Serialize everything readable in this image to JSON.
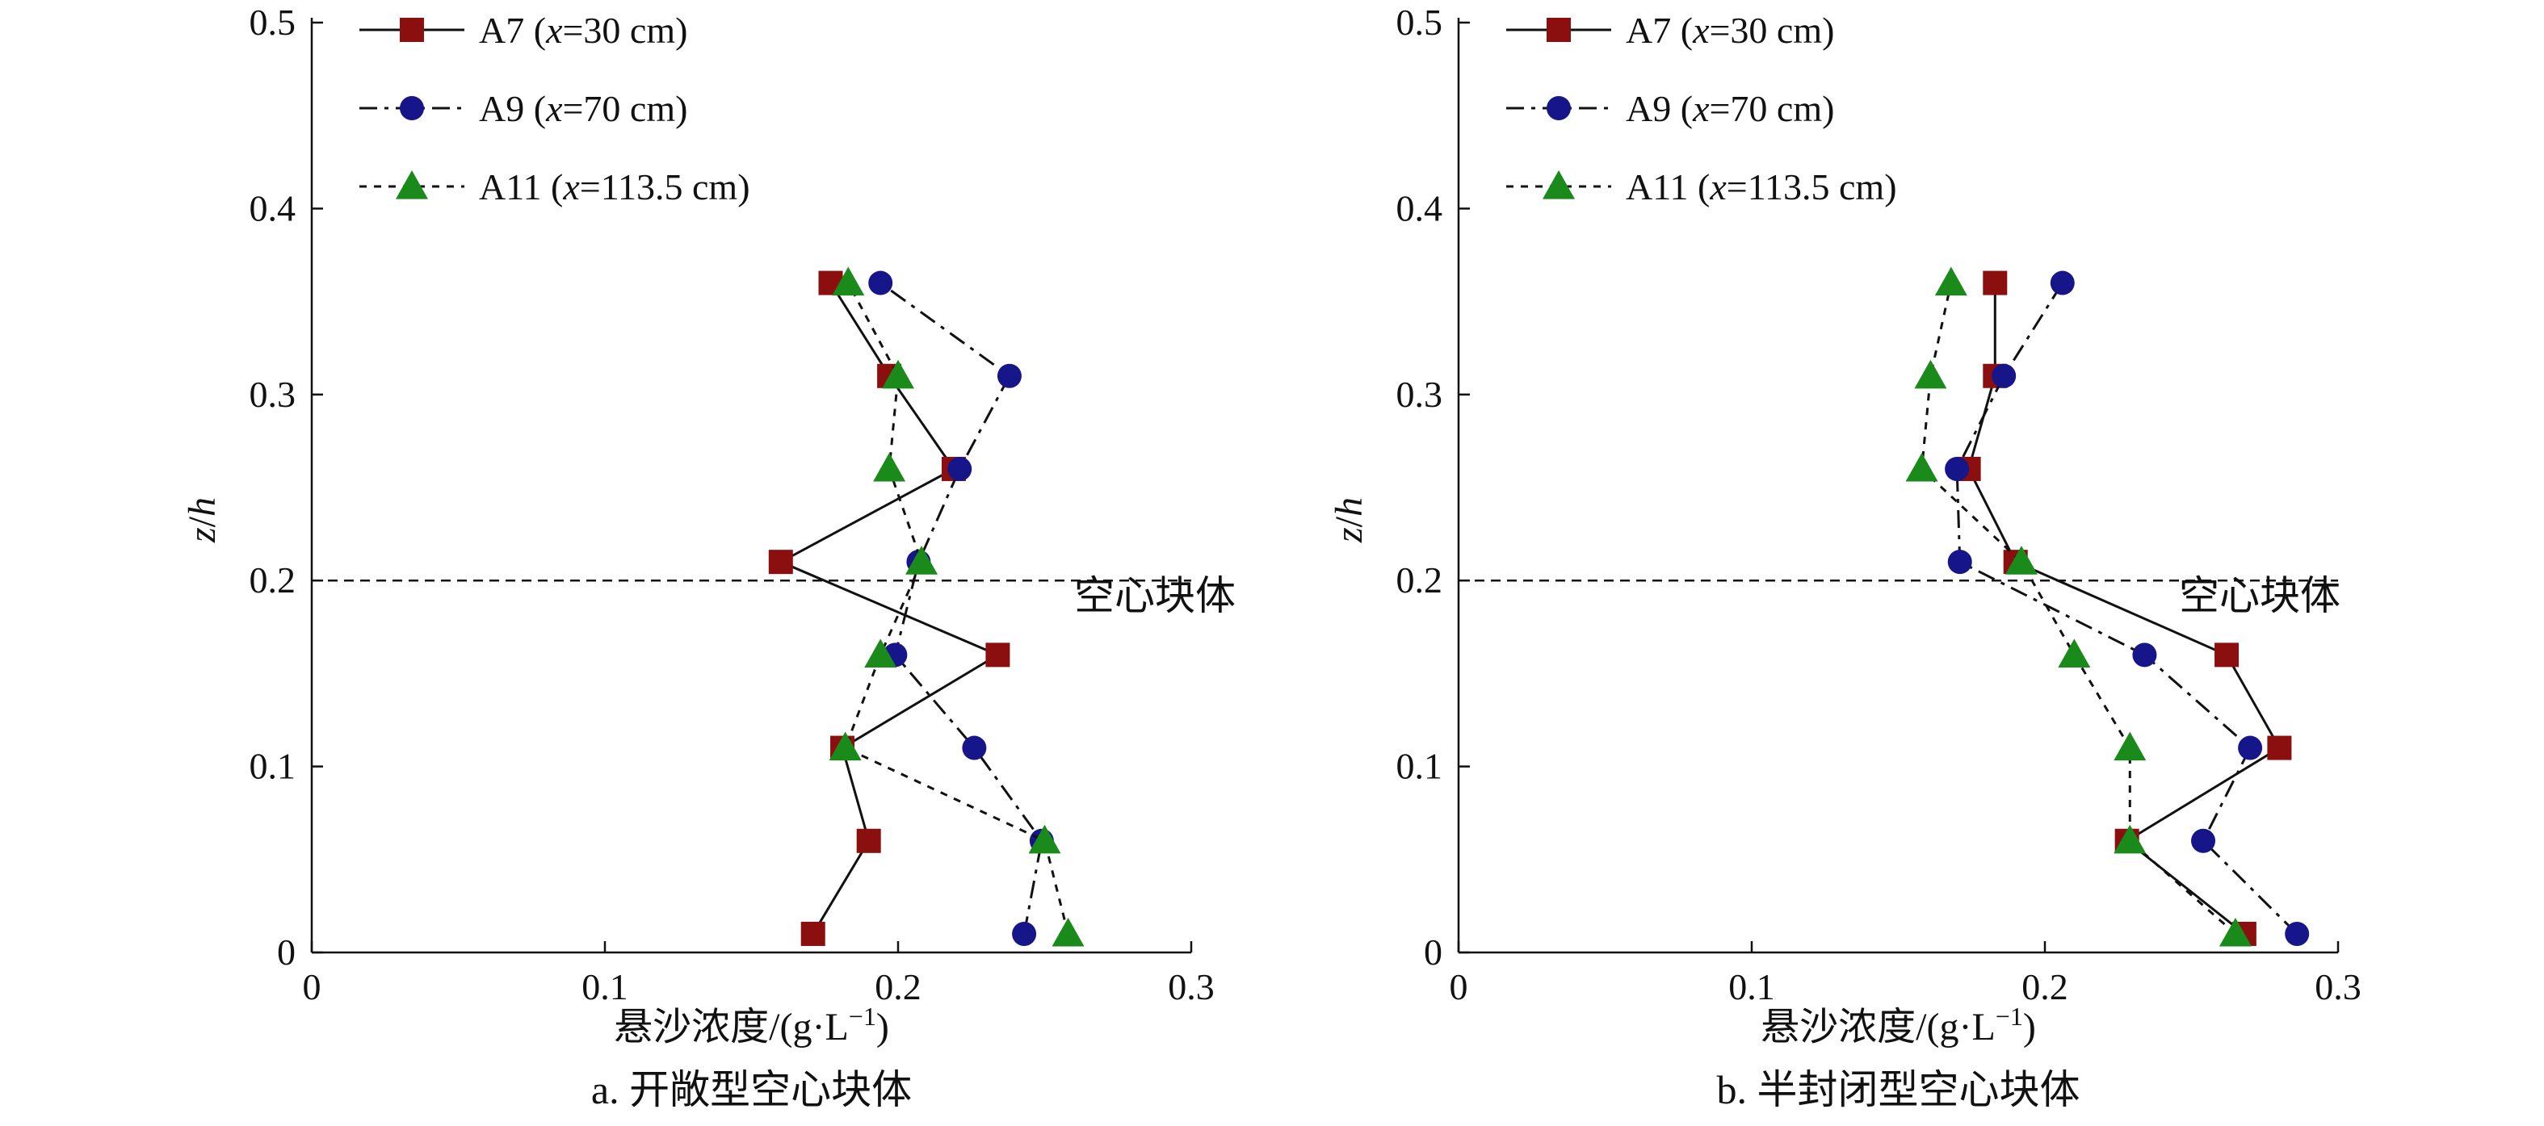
{
  "chart_data": [
    {
      "type": "line",
      "caption": "a. 开敞型空心块体",
      "xlabel": "悬沙浓度/(g·L",
      "xlabel_sup": "−1",
      "xlabel_tail": ")",
      "ylabel_var": "z",
      "ylabel_sep": "/",
      "ylabel_var2": "h",
      "xlim": [
        0,
        0.3
      ],
      "ylim": [
        0,
        0.5
      ],
      "xticks": [
        "0",
        "0.1",
        "0.2",
        "0.3"
      ],
      "yticks": [
        "0",
        "0.1",
        "0.2",
        "0.3",
        "0.4",
        "0.5"
      ],
      "reference_line": {
        "y": 0.2,
        "label": "空心块体"
      },
      "legend_position": "top-left",
      "series": [
        {
          "name": "A7",
          "param": "x",
          "value": "=30 cm",
          "color": "#8b0f0f",
          "marker": "square",
          "line": "solid",
          "points": [
            [
              0.171,
              0.01
            ],
            [
              0.19,
              0.06
            ],
            [
              0.181,
              0.11
            ],
            [
              0.234,
              0.16
            ],
            [
              0.16,
              0.21
            ],
            [
              0.219,
              0.26
            ],
            [
              0.197,
              0.31
            ],
            [
              0.177,
              0.36
            ]
          ]
        },
        {
          "name": "A9",
          "param": "x",
          "value": "=70 cm",
          "color": "#16168a",
          "marker": "circle",
          "line": "dashdot",
          "points": [
            [
              0.243,
              0.01
            ],
            [
              0.249,
              0.06
            ],
            [
              0.226,
              0.11
            ],
            [
              0.199,
              0.16
            ],
            [
              0.207,
              0.21
            ],
            [
              0.221,
              0.26
            ],
            [
              0.238,
              0.31
            ],
            [
              0.194,
              0.36
            ]
          ]
        },
        {
          "name": "A11",
          "param": "x",
          "value": "=113.5 cm",
          "color": "#1a8a1a",
          "marker": "triangle",
          "line": "dotted",
          "points": [
            [
              0.258,
              0.01
            ],
            [
              0.25,
              0.06
            ],
            [
              0.182,
              0.11
            ],
            [
              0.194,
              0.16
            ],
            [
              0.208,
              0.21
            ],
            [
              0.197,
              0.26
            ],
            [
              0.2,
              0.31
            ],
            [
              0.183,
              0.36
            ]
          ]
        }
      ]
    },
    {
      "type": "line",
      "caption": "b. 半封闭型空心块体",
      "xlabel": "悬沙浓度/(g·L",
      "xlabel_sup": "−1",
      "xlabel_tail": ")",
      "ylabel_var": "z",
      "ylabel_sep": "/",
      "ylabel_var2": "h",
      "xlim": [
        0,
        0.3
      ],
      "ylim": [
        0,
        0.5
      ],
      "xticks": [
        "0",
        "0.1",
        "0.2",
        "0.3"
      ],
      "yticks": [
        "0",
        "0.1",
        "0.2",
        "0.3",
        "0.4",
        "0.5"
      ],
      "reference_line": {
        "y": 0.2,
        "label": "空心块体"
      },
      "legend_position": "top-left",
      "series": [
        {
          "name": "A7",
          "param": "x",
          "value": "=30 cm",
          "color": "#8b0f0f",
          "marker": "square",
          "line": "solid",
          "points": [
            [
              0.268,
              0.01
            ],
            [
              0.228,
              0.06
            ],
            [
              0.28,
              0.11
            ],
            [
              0.262,
              0.16
            ],
            [
              0.19,
              0.21
            ],
            [
              0.174,
              0.26
            ],
            [
              0.183,
              0.31
            ],
            [
              0.183,
              0.36
            ]
          ]
        },
        {
          "name": "A9",
          "param": "x",
          "value": "=70 cm",
          "color": "#16168a",
          "marker": "circle",
          "line": "dashdot",
          "points": [
            [
              0.286,
              0.01
            ],
            [
              0.254,
              0.06
            ],
            [
              0.27,
              0.11
            ],
            [
              0.234,
              0.16
            ],
            [
              0.171,
              0.21
            ],
            [
              0.17,
              0.26
            ],
            [
              0.186,
              0.31
            ],
            [
              0.206,
              0.36
            ]
          ]
        },
        {
          "name": "A11",
          "param": "x",
          "value": "=113.5 cm",
          "color": "#1a8a1a",
          "marker": "triangle",
          "line": "dotted",
          "points": [
            [
              0.265,
              0.01
            ],
            [
              0.229,
              0.06
            ],
            [
              0.229,
              0.11
            ],
            [
              0.21,
              0.16
            ],
            [
              0.192,
              0.21
            ],
            [
              0.158,
              0.26
            ],
            [
              0.161,
              0.31
            ],
            [
              0.168,
              0.36
            ]
          ]
        }
      ]
    }
  ]
}
